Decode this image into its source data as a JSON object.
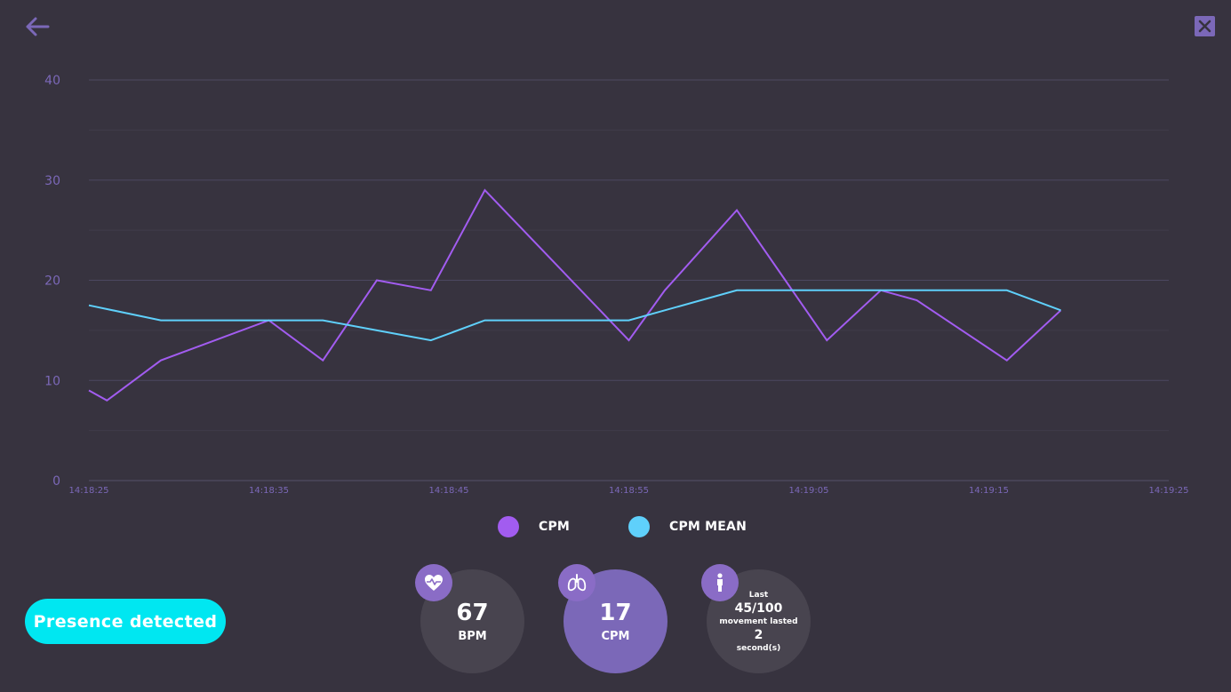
{
  "nav": {
    "back_icon": "arrow-left-icon",
    "close_icon": "close-icon",
    "accent": "#7b68b8"
  },
  "chart_data": {
    "type": "line",
    "title": "",
    "xlabel": "",
    "ylabel": "",
    "ylim": [
      0,
      40
    ],
    "yticks": [
      0,
      10,
      20,
      30,
      40
    ],
    "x_ticks": [
      "14:18:25",
      "14:18:35",
      "14:18:45",
      "14:18:55",
      "14:19:05",
      "14:19:15",
      "14:19:25"
    ],
    "xlim_seconds": [
      0,
      60
    ],
    "grid": true,
    "legend_position": "bottom-center",
    "series": [
      {
        "name": "CPM",
        "color": "#a25cf0",
        "points": [
          [
            "14:18:25",
            9
          ],
          [
            "14:18:26",
            8
          ],
          [
            "14:18:29",
            12
          ],
          [
            "14:18:35",
            16
          ],
          [
            "14:18:38",
            12
          ],
          [
            "14:18:41",
            20
          ],
          [
            "14:18:44",
            19
          ],
          [
            "14:18:47",
            29
          ],
          [
            "14:18:55",
            14
          ],
          [
            "14:18:57",
            19
          ],
          [
            "14:19:01",
            27
          ],
          [
            "14:19:06",
            14
          ],
          [
            "14:19:09",
            19
          ],
          [
            "14:19:11",
            18
          ],
          [
            "14:19:16",
            12
          ],
          [
            "14:19:19",
            17
          ]
        ]
      },
      {
        "name": "CPM MEAN",
        "color": "#5fd0fb",
        "points": [
          [
            "14:18:25",
            17.5
          ],
          [
            "14:18:29",
            16
          ],
          [
            "14:18:38",
            16
          ],
          [
            "14:18:41",
            15
          ],
          [
            "14:18:44",
            14
          ],
          [
            "14:18:47",
            16
          ],
          [
            "14:18:55",
            16
          ],
          [
            "14:18:57",
            17
          ],
          [
            "14:19:01",
            19
          ],
          [
            "14:19:16",
            19
          ],
          [
            "14:19:19",
            17
          ]
        ]
      }
    ]
  },
  "legend": {
    "cpm": {
      "label": "CPM",
      "color": "#a25cf0"
    },
    "cpm_mean": {
      "label": "CPM MEAN",
      "color": "#5fd0fb"
    }
  },
  "presence": {
    "label": "Presence detected",
    "color": "#00e7f1"
  },
  "metrics": {
    "bpm": {
      "icon": "heart-pulse-icon",
      "value": "67",
      "unit": "BPM"
    },
    "cpm": {
      "icon": "lungs-icon",
      "value": "17",
      "unit": "CPM"
    },
    "movement": {
      "icon": "person-icon",
      "line1": "Last",
      "value": "45/100",
      "line2": "movement lasted",
      "duration": "2",
      "duration_unit": "second(s)"
    }
  }
}
